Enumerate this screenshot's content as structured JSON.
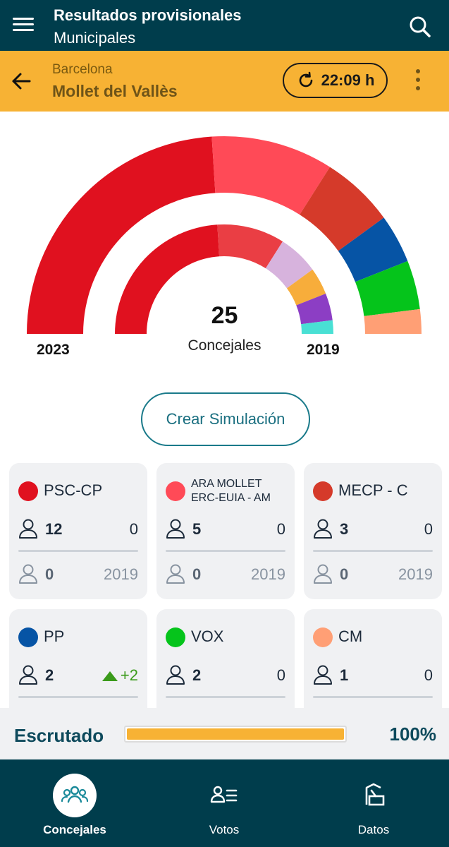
{
  "appbar": {
    "title": "Resultados provisionales",
    "subtitle": "Municipales",
    "menu_icon": "hamburger-menu-icon",
    "search_icon": "search-icon"
  },
  "location": {
    "province": "Barcelona",
    "municipality": "Mollet del Vallès",
    "update_time": "22:09 h",
    "refresh_icon": "refresh-icon",
    "back_icon": "arrow-left-icon",
    "more_icon": "more-vertical-icon"
  },
  "summary": {
    "total_seats": "25",
    "total_label": "Concejales",
    "outer_year": "2023",
    "inner_year": "2019"
  },
  "chart_data": {
    "type": "pie",
    "total": 25,
    "series": [
      {
        "name": "2023",
        "slices": [
          {
            "party": "PSC-CP",
            "seats": 12,
            "color": "#e0111f"
          },
          {
            "party": "ARA MOLLET ERC-EUIA - AM",
            "seats": 5,
            "color": "#ff4a57"
          },
          {
            "party": "MECP - C",
            "seats": 3,
            "color": "#d53a2a"
          },
          {
            "party": "PP",
            "seats": 2,
            "color": "#0654a5"
          },
          {
            "party": "VOX",
            "seats": 2,
            "color": "#05c41b"
          },
          {
            "party": "CM",
            "seats": 1,
            "color": "#ff9f75"
          }
        ]
      },
      {
        "name": "2019",
        "slices": [
          {
            "party": "PSC-CP",
            "seats": 12,
            "color": "#e0111f"
          },
          {
            "party": "ARA MOLLET ERC-EUIA - AM",
            "seats": 5,
            "color": "#ea3e44"
          },
          {
            "party": "",
            "seats": 3,
            "color": "#d7b3dd"
          },
          {
            "party": "",
            "seats": 2,
            "color": "#f7ad3b"
          },
          {
            "party": "",
            "seats": 2,
            "color": "#8c3ec4"
          },
          {
            "party": "",
            "seats": 1,
            "color": "#49e0d4"
          }
        ]
      }
    ]
  },
  "simulation_button": "Crear Simulación",
  "parties": [
    {
      "name": "PSC-CP",
      "color": "#e0111f",
      "seats": "12",
      "change": "0",
      "seats_2019": "0",
      "year": "2019"
    },
    {
      "name_line1": "ARA MOLLET",
      "name_line2": "ERC-EUIA - AM",
      "color": "#ff4a57",
      "seats": "5",
      "change": "0",
      "seats_2019": "0",
      "year": "2019"
    },
    {
      "name": "MECP - C",
      "color": "#d53a2a",
      "seats": "3",
      "change": "0",
      "seats_2019": "0",
      "year": "2019"
    },
    {
      "name": "PP",
      "color": "#0654a5",
      "seats": "2",
      "change": "+2"
    },
    {
      "name": "VOX",
      "color": "#05c41b",
      "seats": "2",
      "change": "0"
    },
    {
      "name": "CM",
      "color": "#ff9f75",
      "seats": "1",
      "change": "0"
    }
  ],
  "scrutiny": {
    "label": "Escrutado",
    "percent_text": "100%",
    "progress": 1.0
  },
  "nav": [
    {
      "label": "Concejales",
      "icon": "people-group-icon",
      "active": true
    },
    {
      "label": "Votos",
      "icon": "person-list-icon",
      "active": false
    },
    {
      "label": "Datos",
      "icon": "ballot-box-icon",
      "active": false
    }
  ]
}
